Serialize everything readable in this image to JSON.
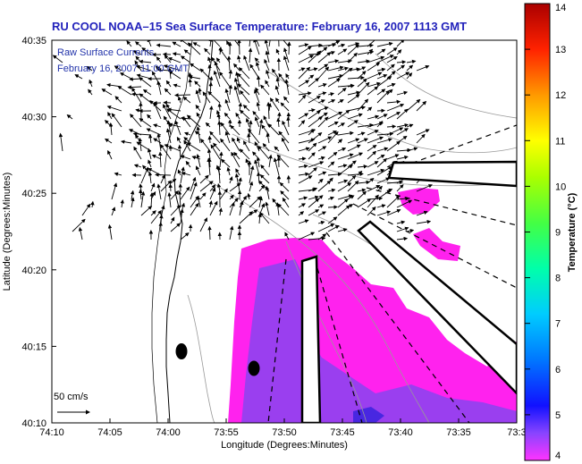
{
  "title": "RU COOL  NOAA–15  Sea Surface Temperature:  February 16, 2007 1113 GMT",
  "overlay": {
    "line1": "Raw Surface Currents",
    "line2": "February 16, 2007 11:00 GMT"
  },
  "scale_label": "50 cm/s",
  "axes": {
    "xlabel": "Longitude (Degrees:Minutes)",
    "ylabel": "Latitude (Degrees:Minutes)",
    "x_ticks": [
      "74:10",
      "74:05",
      "74:00",
      "73:55",
      "73:50",
      "73:45",
      "73:40",
      "73:35",
      "73:3"
    ],
    "y_ticks": [
      "40:35",
      "40:30",
      "40:25",
      "40:20",
      "40:15",
      "40:10"
    ]
  },
  "colorbar": {
    "label": "Temperature (°C)",
    "ticks": [
      "14",
      "13",
      "12",
      "11",
      "10",
      "9",
      "8",
      "7",
      "6",
      "5",
      "4"
    ],
    "min": 4,
    "max": 14
  },
  "colors": {
    "title": "#2222bb",
    "sst_main": "#ff22ee",
    "sst_cool": "#7744ff",
    "coast": "#000000"
  }
}
